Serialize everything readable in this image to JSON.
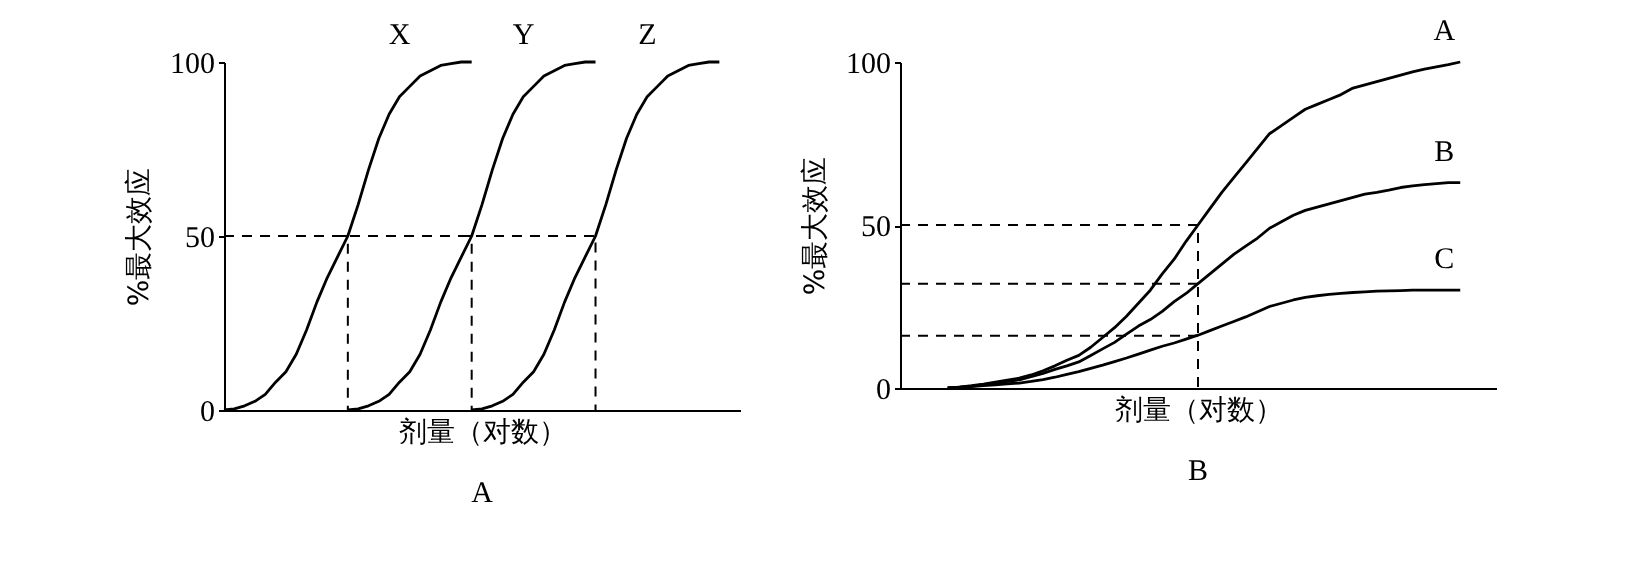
{
  "chart_data": [
    {
      "type": "line",
      "title": "A",
      "xlabel": "剂量（对数）",
      "ylabel": "%最大效应",
      "categories": [
        null,
        null,
        null,
        null,
        null,
        null,
        null,
        null,
        null,
        null,
        null,
        null,
        null,
        null,
        null,
        null,
        null,
        null,
        null,
        null,
        null,
        null,
        null,
        null,
        null,
        null,
        null,
        null,
        null,
        null,
        null,
        null,
        null,
        null,
        null,
        null,
        null,
        null,
        null,
        null,
        null,
        null,
        null,
        null,
        null,
        null,
        null,
        null,
        null,
        null,
        null
      ],
      "ylim": [
        0,
        100
      ],
      "yticks": [
        0,
        50,
        100
      ],
      "tick_labels": "y",
      "grid": false,
      "marker": "none",
      "line_style": "solid",
      "series": [
        {
          "name": "X",
          "color": "#000000",
          "values": [
            0,
            0.3,
            1.2,
            2.5,
            4.5,
            8,
            11,
            16,
            23,
            31,
            38,
            44,
            50,
            59,
            69,
            78,
            85,
            90,
            93,
            96,
            97.5,
            99,
            99.5,
            100,
            100,
            null,
            null,
            null,
            null,
            null,
            null,
            null,
            null,
            null,
            null,
            null,
            null,
            null,
            null,
            null,
            null,
            null,
            null,
            null,
            null,
            null,
            null,
            null,
            null,
            null,
            null
          ]
        },
        {
          "name": "Y",
          "color": "#000000",
          "values": [
            null,
            null,
            null,
            null,
            null,
            null,
            null,
            null,
            null,
            null,
            null,
            null,
            0,
            0.3,
            1.2,
            2.5,
            4.5,
            8,
            11,
            16,
            23,
            31,
            38,
            44,
            50,
            59,
            69,
            78,
            85,
            90,
            93,
            96,
            97.5,
            99,
            99.5,
            100,
            100,
            null,
            null,
            null,
            null,
            null,
            null,
            null,
            null,
            null,
            null,
            null,
            null,
            null,
            null
          ]
        },
        {
          "name": "Z",
          "color": "#000000",
          "values": [
            null,
            null,
            null,
            null,
            null,
            null,
            null,
            null,
            null,
            null,
            null,
            null,
            null,
            null,
            null,
            null,
            null,
            null,
            null,
            null,
            null,
            null,
            null,
            null,
            0,
            0.3,
            1.2,
            2.5,
            4.5,
            8,
            11,
            16,
            23,
            31,
            38,
            44,
            50,
            59,
            69,
            78,
            85,
            90,
            93,
            96,
            97.5,
            99,
            99.5,
            100,
            100,
            null,
            null
          ]
        },
        {
          "type": "step",
          "color": "#000000",
          "line_style": "dashed",
          "values": [
            50,
            50,
            50,
            50,
            50,
            50,
            50,
            50,
            50,
            50,
            50,
            50,
            50,
            50,
            50,
            50,
            50,
            50,
            50,
            50,
            50,
            50,
            50,
            50,
            50,
            50,
            50,
            50,
            50,
            50,
            50,
            50,
            50,
            50,
            50,
            50,
            0,
            null,
            null,
            null,
            null,
            null,
            null,
            null,
            null,
            null,
            null,
            null,
            null,
            null,
            null
          ]
        },
        {
          "type": "step",
          "color": "#000000",
          "line_style": "dashed",
          "values": [
            null,
            null,
            null,
            null,
            null,
            null,
            null,
            null,
            null,
            null,
            null,
            50,
            0,
            null,
            null,
            null,
            null,
            null,
            null,
            null,
            null,
            null,
            null,
            null,
            null,
            null,
            null,
            null,
            null,
            null,
            null,
            null,
            null,
            null,
            null,
            null,
            null,
            null,
            null,
            null,
            null,
            null,
            null,
            null,
            null,
            null,
            null,
            null,
            null,
            null,
            null
          ]
        },
        {
          "type": "step",
          "color": "#000000",
          "line_style": "dashed",
          "values": [
            null,
            null,
            null,
            null,
            null,
            null,
            null,
            null,
            null,
            null,
            null,
            null,
            null,
            null,
            null,
            null,
            null,
            null,
            null,
            null,
            null,
            null,
            null,
            50,
            0,
            null,
            null,
            null,
            null,
            null,
            null,
            null,
            null,
            null,
            null,
            null,
            null,
            null,
            null,
            null,
            null,
            null,
            null,
            null,
            null,
            null,
            null,
            null,
            null,
            null,
            null
          ]
        }
      ]
    },
    {
      "type": "line",
      "title": "B",
      "xlabel": "剂量（对数）",
      "ylabel": "%最大效应",
      "categories": [
        null,
        null,
        null,
        null,
        null,
        null,
        null,
        null,
        null,
        null,
        null,
        null,
        null,
        null,
        null,
        null,
        null,
        null,
        null,
        null,
        null,
        null,
        null,
        null,
        null,
        null,
        null,
        null,
        null,
        null,
        null,
        null,
        null,
        null,
        null,
        null,
        null,
        null,
        null,
        null,
        null,
        null,
        null,
        null,
        null,
        null,
        null,
        null,
        null,
        null,
        null
      ],
      "ylim": [
        0,
        100
      ],
      "yticks": [
        0,
        50,
        100
      ],
      "tick_labels": "y",
      "grid": false,
      "marker": "none",
      "line_style": "solid",
      "series": [
        {
          "name": "A",
          "color": "#000000",
          "values": [
            null,
            null,
            null,
            null,
            0,
            0.3,
            0.7,
            1.2,
            1.8,
            2.4,
            3,
            4,
            5.3,
            6.8,
            8.5,
            10,
            12.5,
            15.5,
            18.5,
            22,
            26,
            30,
            35,
            39.5,
            45,
            50,
            55,
            60,
            64.5,
            69,
            73.5,
            78,
            80.5,
            83,
            85.5,
            87,
            88.5,
            90,
            92,
            93,
            94,
            95,
            96,
            97,
            97.8,
            98.5,
            99.2,
            100,
            null,
            null,
            null
          ]
        },
        {
          "name": "B",
          "color": "#000000",
          "values": [
            null,
            null,
            null,
            null,
            0,
            0.3,
            0.6,
            1,
            1.5,
            2,
            2.5,
            3.5,
            4.5,
            5.7,
            6.8,
            8,
            10,
            12,
            14,
            16.5,
            19,
            21,
            23.5,
            26.5,
            29,
            32,
            35,
            38,
            41,
            43.5,
            46,
            49,
            51,
            53,
            54.5,
            55.5,
            56.5,
            57.5,
            58.5,
            59.5,
            60,
            60.7,
            61.5,
            62,
            62.4,
            62.7,
            63,
            63,
            null,
            null,
            null
          ]
        },
        {
          "name": "C",
          "color": "#000000",
          "values": [
            null,
            null,
            null,
            null,
            0,
            0.2,
            0.4,
            0.7,
            1,
            1.3,
            1.5,
            2,
            2.6,
            3.3,
            4.2,
            5,
            6,
            7,
            8.1,
            9.2,
            10.4,
            11.6,
            12.8,
            13.8,
            15,
            16.2,
            17.6,
            19,
            20.4,
            21.8,
            23.4,
            25,
            26,
            27,
            27.8,
            28.3,
            28.7,
            29,
            29.3,
            29.5,
            29.7,
            29.8,
            29.9,
            30,
            30,
            30,
            30,
            30,
            null,
            null,
            null
          ]
        },
        {
          "type": "step",
          "color": "#000000",
          "line_style": "dashed",
          "values": [
            50,
            50,
            50,
            50,
            50,
            50,
            50,
            50,
            50,
            50,
            50,
            50,
            50,
            50,
            50,
            50,
            50,
            50,
            50,
            50,
            50,
            50,
            50,
            50,
            50,
            0,
            null,
            null,
            null,
            null,
            null,
            null,
            null,
            null,
            null,
            null,
            null,
            null,
            null,
            null,
            null,
            null,
            null,
            null,
            null,
            null,
            null,
            null,
            null,
            null,
            null
          ]
        },
        {
          "color": "#000000",
          "line_style": "dashed",
          "values": [
            32,
            32,
            32,
            32,
            32,
            32,
            32,
            32,
            32,
            32,
            32,
            32,
            32,
            32,
            32,
            32,
            32,
            32,
            32,
            32,
            32,
            32,
            32,
            32,
            32,
            32,
            null,
            null,
            null,
            null,
            null,
            null,
            null,
            null,
            null,
            null,
            null,
            null,
            null,
            null,
            null,
            null,
            null,
            null,
            null,
            null,
            null,
            null,
            null,
            null,
            null
          ]
        },
        {
          "color": "#000000",
          "line_style": "dashed",
          "values": [
            16,
            16,
            16,
            16,
            16,
            16,
            16,
            16,
            16,
            16,
            16,
            16,
            16,
            16,
            16,
            16,
            16,
            16,
            16,
            16,
            16,
            16,
            16,
            16,
            16,
            16,
            null,
            null,
            null,
            null,
            null,
            null,
            null,
            null,
            null,
            null,
            null,
            null,
            null,
            null,
            null,
            null,
            null,
            null,
            null,
            null,
            null,
            null,
            null,
            null,
            null
          ]
        }
      ]
    }
  ]
}
